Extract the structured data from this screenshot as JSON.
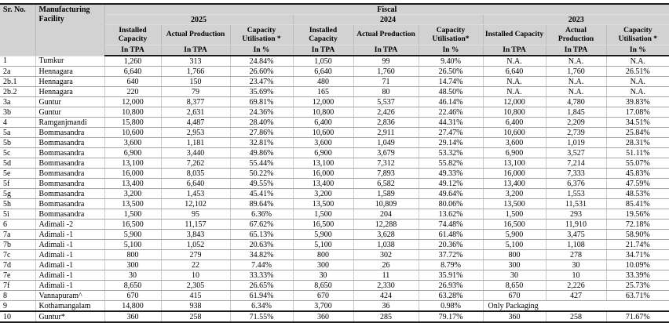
{
  "colors": {
    "header_bg": "#d2d2d2",
    "line_dark": "#1b1b1b",
    "row_line": "#a6a6a6",
    "col_line": "#c9c9c9",
    "header_inner_line": "#dedede",
    "header_col_line": "#bcbcbc"
  },
  "table": {
    "header": {
      "sr_no": "Sr. No.",
      "facility": "Manufacturing Facility",
      "fiscal": "Fiscal",
      "years": [
        {
          "year": "2025",
          "columns": [
            {
              "label": "Installed Capacity",
              "unit": "In TPA"
            },
            {
              "label": "Actual Production",
              "unit": "In TPA"
            },
            {
              "label": "Capacity Utilisation *",
              "unit": "In %"
            }
          ]
        },
        {
          "year": "2024",
          "columns": [
            {
              "label": "Installed Capacity",
              "unit": "In TPA"
            },
            {
              "label": "Actual Production",
              "unit": "In TPA"
            },
            {
              "label": "Capacity Utilisation*",
              "unit": "In %"
            }
          ]
        },
        {
          "year": "2023",
          "columns": [
            {
              "label": "Installed Capacity",
              "unit": "In TPA"
            },
            {
              "label": "Actual Production",
              "unit": "In TPA"
            },
            {
              "label": "Capacity Utilisation *",
              "unit": "In %"
            }
          ]
        }
      ]
    },
    "rows": [
      {
        "sr": "1",
        "facility": "Tumkur",
        "values": [
          "1,260",
          "313",
          "24.84%",
          "1,050",
          "99",
          "9.40%",
          "N.A.",
          "N.A.",
          "N.A."
        ]
      },
      {
        "sr": "2a",
        "facility": "Hennagara",
        "values": [
          "6,640",
          "1,766",
          "26.60%",
          "6,640",
          "1,760",
          "26.50%",
          "6,640",
          "1,760",
          "26.51%"
        ]
      },
      {
        "sr": "2b.1",
        "facility": "Hennagara",
        "values": [
          "640",
          "150",
          "23.47%",
          "480",
          "71",
          "14.74%",
          "N.A.",
          "N.A.",
          "N.A."
        ]
      },
      {
        "sr": "2b.2",
        "facility": "Hennagara",
        "values": [
          "220",
          "79",
          "35.69%",
          "165",
          "80",
          "48.50%",
          "N.A.",
          "N.A.",
          "N.A."
        ]
      },
      {
        "sr": "3a",
        "facility": "Guntur",
        "values": [
          "12,000",
          "8,377",
          "69.81%",
          "12,000",
          "5,537",
          "46.14%",
          "12,000",
          "4,780",
          "39.83%"
        ]
      },
      {
        "sr": "3b",
        "facility": "Guntur",
        "values": [
          "10,800",
          "2,631",
          "24.36%",
          "10,800",
          "2,426",
          "22.46%",
          "10,800",
          "1,845",
          "17.08%"
        ]
      },
      {
        "sr": "4",
        "facility": "Ramganjmandi",
        "values": [
          "15,800",
          "4,487",
          "28.40%",
          "6,400",
          "2,836",
          "44.31%",
          "6,400",
          "2,209",
          "34.51%"
        ]
      },
      {
        "sr": "5a",
        "facility": "Bommasandra",
        "values": [
          "10,600",
          "2,953",
          "27.86%",
          "10,600",
          "2,911",
          "27.47%",
          "10,600",
          "2,739",
          "25.84%"
        ]
      },
      {
        "sr": "5b",
        "facility": "Bommasandra",
        "values": [
          "3,600",
          "1,181",
          "32.81%",
          "3,600",
          "1,049",
          "29.14%",
          "3,600",
          "1,019",
          "28.31%"
        ]
      },
      {
        "sr": "5c",
        "facility": "Bommasandra",
        "values": [
          "6,900",
          "3,440",
          "49.86%",
          "6,900",
          "3,679",
          "53.32%",
          "6,900",
          "3,527",
          "51.11%"
        ]
      },
      {
        "sr": "5d",
        "facility": "Bommasandra",
        "values": [
          "13,100",
          "7,262",
          "55.44%",
          "13,100",
          "7,312",
          "55.82%",
          "13,100",
          "7,214",
          "55.07%"
        ]
      },
      {
        "sr": "5e",
        "facility": "Bommasandra",
        "values": [
          "16,000",
          "8,035",
          "50.22%",
          "16,000",
          "7,893",
          "49.33%",
          "16,000",
          "7,333",
          "45.83%"
        ]
      },
      {
        "sr": "5f",
        "facility": "Bommasandra",
        "values": [
          "13,400",
          "6,640",
          "49.55%",
          "13,400",
          "6,582",
          "49.12%",
          "13,400",
          "6,376",
          "47.59%"
        ]
      },
      {
        "sr": "5g",
        "facility": "Bommasandra",
        "values": [
          "3,200",
          "1,453",
          "45.41%",
          "3,200",
          "1,589",
          "49.64%",
          "3,200",
          "1,553",
          "48.53%"
        ]
      },
      {
        "sr": "5h",
        "facility": "Bommasandra",
        "values": [
          "13,500",
          "12,102",
          "89.64%",
          "13,500",
          "10,809",
          "80.06%",
          "13,500",
          "11,531",
          "85.41%"
        ]
      },
      {
        "sr": "5i",
        "facility": "Bommasandra",
        "values": [
          "1,500",
          "95",
          "6.36%",
          "1,500",
          "204",
          "13.62%",
          "1,500",
          "293",
          "19.56%"
        ]
      },
      {
        "sr": "6",
        "facility": "Adimali -2",
        "values": [
          "16,500",
          "11,157",
          "67.62%",
          "16,500",
          "12,288",
          "74.48%",
          "16,500",
          "11,910",
          "72.18%"
        ]
      },
      {
        "sr": "7a",
        "facility": "Adimali -1",
        "values": [
          "5,900",
          "3,843",
          "65.13%",
          "5,900",
          "3,628",
          "61.48%",
          "5,900",
          "3,475",
          "58.90%"
        ]
      },
      {
        "sr": "7b",
        "facility": "Adimali -1",
        "values": [
          "5,100",
          "1,052",
          "20.63%",
          "5,100",
          "1,038",
          "20.36%",
          "5,100",
          "1,108",
          "21.74%"
        ]
      },
      {
        "sr": "7c",
        "facility": "Adimali -1",
        "values": [
          "800",
          "279",
          "34.82%",
          "800",
          "302",
          "37.72%",
          "800",
          "278",
          "34.71%"
        ]
      },
      {
        "sr": "7d",
        "facility": "Adimali -1",
        "values": [
          "300",
          "22",
          "7.44%",
          "300",
          "26",
          "8.79%",
          "300",
          "30",
          "10.09%"
        ]
      },
      {
        "sr": "7e",
        "facility": "Adimali -1",
        "values": [
          "30",
          "10",
          "33.33%",
          "30",
          "11",
          "35.91%",
          "30",
          "10",
          "33.39%"
        ]
      },
      {
        "sr": "7f",
        "facility": "Adimali -1",
        "values": [
          "8,650",
          "2,305",
          "26.65%",
          "8,650",
          "2,330",
          "26.93%",
          "8,650",
          "2,226",
          "25.73%"
        ]
      },
      {
        "sr": "8",
        "facility": "Vannapuram^",
        "values": [
          "670",
          "415",
          "61.94%",
          "670",
          "424",
          "63.28%",
          "670",
          "427",
          "63.71%"
        ]
      },
      {
        "sr": "9",
        "facility": "Kothamangalam",
        "values": [
          "14,800",
          "938",
          "6.34%",
          "3,700",
          "36",
          "0.98%"
        ],
        "note": "Only Packaging"
      },
      {
        "sr": "10",
        "facility": "Guntur*",
        "values": [
          "360",
          "258",
          "71.55%",
          "360",
          "285",
          "79.17%",
          "360",
          "258",
          "71.67%"
        ],
        "divider_above": true
      }
    ]
  }
}
